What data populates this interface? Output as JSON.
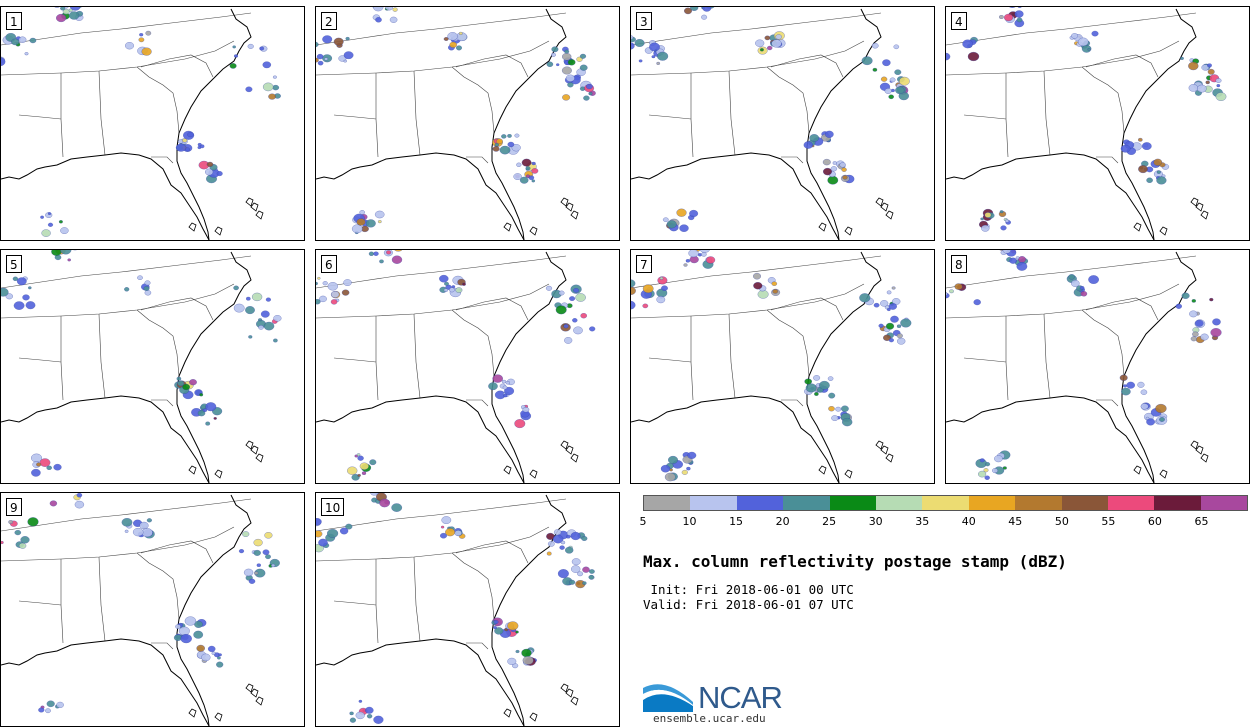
{
  "title": "Max. column reflectivity postage stamp (dBZ)",
  "init": " Init: Fri 2018-06-01 00 UTC",
  "valid": "Valid: Fri 2018-06-01 07 UTC",
  "logo": {
    "name": "NCAR",
    "url": "ensemble.ucar.edu"
  },
  "members": [
    "1",
    "2",
    "3",
    "4",
    "5",
    "6",
    "7",
    "8",
    "9",
    "10"
  ],
  "colorbar": {
    "ticks": [
      "5",
      "10",
      "15",
      "20",
      "25",
      "30",
      "35",
      "40",
      "45",
      "50",
      "55",
      "60",
      "65"
    ],
    "colors": [
      "#a6a6a6",
      "#b8c4ee",
      "#5262db",
      "#4a8f97",
      "#0a8a16",
      "#b6dcb4",
      "#ecdc72",
      "#e8a622",
      "#b3792f",
      "#8a5638",
      "#ec4a7c",
      "#6b1b3a",
      "#a8489e"
    ]
  }
}
